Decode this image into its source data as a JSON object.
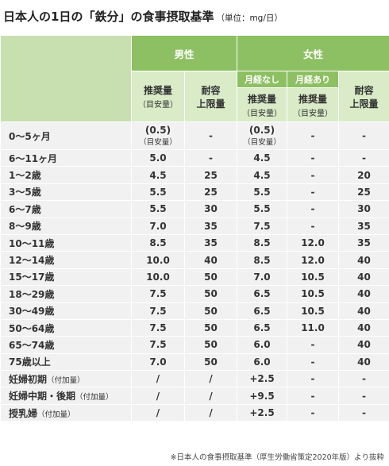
{
  "title": {
    "text": "日本人の1日の「鉄分」の食事摂取基準",
    "unit": "（単位：mg/日）"
  },
  "header": {
    "male": "男性",
    "female": "女性",
    "no_menstruation": "月経なし",
    "with_menstruation": "月経あり",
    "recommended_main": "推奨量",
    "recommended_sub": "（目安量）",
    "upper_limit_line1": "耐容",
    "upper_limit_line2": "上限量"
  },
  "rows": [
    {
      "age": "0〜5ヶ月",
      "age_note": "",
      "m_rec": "(0.5)",
      "m_rec_note": "（目安量）",
      "m_ul": "-",
      "f_rec": "(0.5)",
      "f_rec_note": "（目安量）",
      "f_mens": "-",
      "f_ul": "-"
    },
    {
      "age": "6〜11ヶ月",
      "age_note": "",
      "m_rec": "5.0",
      "m_ul": "-",
      "f_rec": "4.5",
      "f_mens": "-",
      "f_ul": "-"
    },
    {
      "age": "1〜2歳",
      "age_note": "",
      "m_rec": "4.5",
      "m_ul": "25",
      "f_rec": "4.5",
      "f_mens": "-",
      "f_ul": "20"
    },
    {
      "age": "3〜5歳",
      "age_note": "",
      "m_rec": "5.5",
      "m_ul": "25",
      "f_rec": "5.5",
      "f_mens": "-",
      "f_ul": "25"
    },
    {
      "age": "6〜7歳",
      "age_note": "",
      "m_rec": "5.5",
      "m_ul": "30",
      "f_rec": "5.5",
      "f_mens": "-",
      "f_ul": "30"
    },
    {
      "age": "8〜9歳",
      "age_note": "",
      "m_rec": "7.0",
      "m_ul": "35",
      "f_rec": "7.5",
      "f_mens": "-",
      "f_ul": "35"
    },
    {
      "age": "10〜11歳",
      "age_note": "",
      "m_rec": "8.5",
      "m_ul": "35",
      "f_rec": "8.5",
      "f_mens": "12.0",
      "f_ul": "35"
    },
    {
      "age": "12〜14歳",
      "age_note": "",
      "m_rec": "10.0",
      "m_ul": "40",
      "f_rec": "8.5",
      "f_mens": "12.0",
      "f_ul": "40"
    },
    {
      "age": "15〜17歳",
      "age_note": "",
      "m_rec": "10.0",
      "m_ul": "50",
      "f_rec": "7.0",
      "f_mens": "10.5",
      "f_ul": "40"
    },
    {
      "age": "18〜29歳",
      "age_note": "",
      "m_rec": "7.5",
      "m_ul": "50",
      "f_rec": "6.5",
      "f_mens": "10.5",
      "f_ul": "40"
    },
    {
      "age": "30〜49歳",
      "age_note": "",
      "m_rec": "7.5",
      "m_ul": "50",
      "f_rec": "6.5",
      "f_mens": "10.5",
      "f_ul": "40"
    },
    {
      "age": "50〜64歳",
      "age_note": "",
      "m_rec": "7.5",
      "m_ul": "50",
      "f_rec": "6.5",
      "f_mens": "11.0",
      "f_ul": "40"
    },
    {
      "age": "65〜74歳",
      "age_note": "",
      "m_rec": "7.5",
      "m_ul": "50",
      "f_rec": "6.0",
      "f_mens": "-",
      "f_ul": "40"
    },
    {
      "age": "75歳以上",
      "age_note": "",
      "m_rec": "7.0",
      "m_ul": "50",
      "f_rec": "6.0",
      "f_mens": "-",
      "f_ul": "40"
    },
    {
      "age": "妊婦初期",
      "age_note": "（付加量）",
      "m_rec": "/",
      "m_ul": "/",
      "f_rec": "+2.5",
      "f_mens": "-",
      "f_ul": "-"
    },
    {
      "age": "妊婦中期・後期",
      "age_note": "（付加量）",
      "m_rec": "/",
      "m_ul": "/",
      "f_rec": "+9.5",
      "f_mens": "-",
      "f_ul": "-"
    },
    {
      "age": "授乳婦",
      "age_note": "（付加量）",
      "m_rec": "/",
      "m_ul": "/",
      "f_rec": "+2.5",
      "f_mens": "-",
      "f_ul": "-"
    }
  ],
  "footnote": "※日本人の食事摂取基準（厚生労働省策定2020年版）より抜粋",
  "colors": {
    "header_green": "#8dc062",
    "subheader_light_green": "#d9ebc7",
    "cell_gray": "#f1f1f1"
  }
}
